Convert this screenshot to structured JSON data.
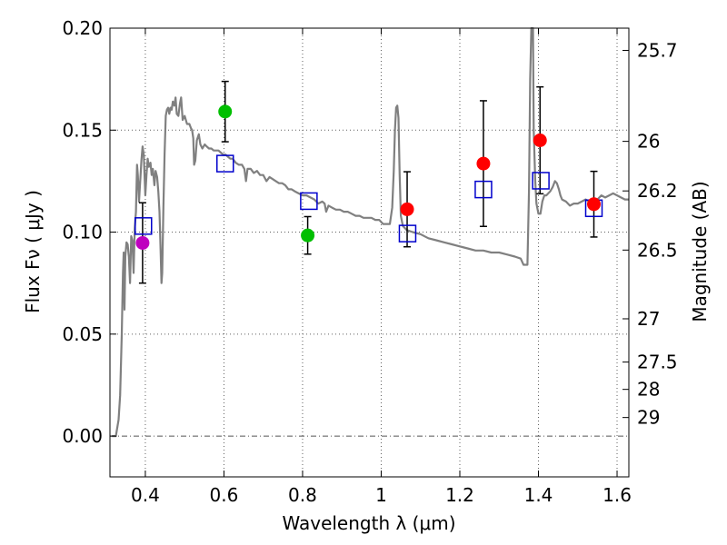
{
  "chart_data": {
    "type": "scatter",
    "xlabel": "Wavelength  λ (μm)",
    "ylabel_left": "Flux  Fν  ( μJy )",
    "ylabel_right": "Magnitude (AB)",
    "xlim": [
      0.31,
      1.63
    ],
    "ylim": [
      -0.02,
      0.2
    ],
    "grid": true,
    "zero_line": 0.0,
    "x_ticks": [
      {
        "value": 0.4,
        "label": "0.4"
      },
      {
        "value": 0.6,
        "label": "0.6"
      },
      {
        "value": 0.8,
        "label": "0.8"
      },
      {
        "value": 1.0,
        "label": "1"
      },
      {
        "value": 1.2,
        "label": "1.2"
      },
      {
        "value": 1.4,
        "label": "1.4"
      },
      {
        "value": 1.6,
        "label": "1.6"
      }
    ],
    "y_ticks": [
      {
        "value": 0.0,
        "label": "0.00"
      },
      {
        "value": 0.05,
        "label": "0.05"
      },
      {
        "value": 0.1,
        "label": "0.10"
      },
      {
        "value": 0.15,
        "label": "0.15"
      },
      {
        "value": 0.2,
        "label": "0.20"
      }
    ],
    "mag_ticks": [
      {
        "value": 0.1891,
        "label": "25.7"
      },
      {
        "value": 0.1445,
        "label": "26"
      },
      {
        "value": 0.1202,
        "label": "26.2"
      },
      {
        "value": 0.0912,
        "label": "26.5"
      },
      {
        "value": 0.0575,
        "label": "27"
      },
      {
        "value": 0.0363,
        "label": "27.5"
      },
      {
        "value": 0.0229,
        "label": "28"
      },
      {
        "value": 0.0091,
        "label": "29"
      }
    ],
    "model_sed": {
      "name": "model spectrum",
      "color": "#808080",
      "points": [
        [
          0.315,
          0.0
        ],
        [
          0.325,
          0.0
        ],
        [
          0.332,
          0.008
        ],
        [
          0.336,
          0.02
        ],
        [
          0.34,
          0.05
        ],
        [
          0.343,
          0.08
        ],
        [
          0.345,
          0.09
        ],
        [
          0.347,
          0.062
        ],
        [
          0.349,
          0.088
        ],
        [
          0.352,
          0.095
        ],
        [
          0.355,
          0.094
        ],
        [
          0.358,
          0.088
        ],
        [
          0.361,
          0.075
        ],
        [
          0.364,
          0.098
        ],
        [
          0.367,
          0.096
        ],
        [
          0.37,
          0.08
        ],
        [
          0.373,
          0.102
        ],
        [
          0.376,
          0.11
        ],
        [
          0.379,
          0.133
        ],
        [
          0.381,
          0.128
        ],
        [
          0.384,
          0.115
        ],
        [
          0.386,
          0.122
        ],
        [
          0.388,
          0.128
        ],
        [
          0.39,
          0.135
        ],
        [
          0.393,
          0.142
        ],
        [
          0.396,
          0.138
        ],
        [
          0.4,
          0.118
        ],
        [
          0.403,
          0.128
        ],
        [
          0.406,
          0.136
        ],
        [
          0.409,
          0.132
        ],
        [
          0.413,
          0.134
        ],
        [
          0.416,
          0.128
        ],
        [
          0.419,
          0.131
        ],
        [
          0.423,
          0.123
        ],
        [
          0.426,
          0.13
        ],
        [
          0.43,
          0.127
        ],
        [
          0.433,
          0.12
        ],
        [
          0.436,
          0.11
        ],
        [
          0.439,
          0.09
        ],
        [
          0.441,
          0.075
        ],
        [
          0.443,
          0.08
        ],
        [
          0.446,
          0.112
        ],
        [
          0.449,
          0.138
        ],
        [
          0.452,
          0.157
        ],
        [
          0.455,
          0.16
        ],
        [
          0.458,
          0.161
        ],
        [
          0.461,
          0.158
        ],
        [
          0.464,
          0.161
        ],
        [
          0.467,
          0.16
        ],
        [
          0.47,
          0.164
        ],
        [
          0.474,
          0.162
        ],
        [
          0.477,
          0.166
        ],
        [
          0.48,
          0.158
        ],
        [
          0.484,
          0.157
        ],
        [
          0.488,
          0.163
        ],
        [
          0.491,
          0.166
        ],
        [
          0.495,
          0.155
        ],
        [
          0.5,
          0.157
        ],
        [
          0.506,
          0.153
        ],
        [
          0.512,
          0.153
        ],
        [
          0.516,
          0.151
        ],
        [
          0.519,
          0.15
        ],
        [
          0.522,
          0.146
        ],
        [
          0.524,
          0.133
        ],
        [
          0.527,
          0.135
        ],
        [
          0.531,
          0.145
        ],
        [
          0.536,
          0.148
        ],
        [
          0.54,
          0.143
        ],
        [
          0.545,
          0.141
        ],
        [
          0.551,
          0.143
        ],
        [
          0.556,
          0.142
        ],
        [
          0.562,
          0.141
        ],
        [
          0.568,
          0.141
        ],
        [
          0.574,
          0.14
        ],
        [
          0.58,
          0.14
        ],
        [
          0.586,
          0.14
        ],
        [
          0.592,
          0.139
        ],
        [
          0.598,
          0.138
        ],
        [
          0.604,
          0.138
        ],
        [
          0.61,
          0.137
        ],
        [
          0.616,
          0.136
        ],
        [
          0.622,
          0.136
        ],
        [
          0.63,
          0.134
        ],
        [
          0.638,
          0.133
        ],
        [
          0.646,
          0.133
        ],
        [
          0.652,
          0.131
        ],
        [
          0.656,
          0.125
        ],
        [
          0.66,
          0.131
        ],
        [
          0.668,
          0.131
        ],
        [
          0.676,
          0.129
        ],
        [
          0.684,
          0.13
        ],
        [
          0.692,
          0.128
        ],
        [
          0.7,
          0.128
        ],
        [
          0.708,
          0.125
        ],
        [
          0.716,
          0.127
        ],
        [
          0.724,
          0.126
        ],
        [
          0.732,
          0.125
        ],
        [
          0.74,
          0.124
        ],
        [
          0.748,
          0.124
        ],
        [
          0.756,
          0.123
        ],
        [
          0.764,
          0.121
        ],
        [
          0.772,
          0.121
        ],
        [
          0.78,
          0.12
        ],
        [
          0.79,
          0.119
        ],
        [
          0.8,
          0.118
        ],
        [
          0.81,
          0.118
        ],
        [
          0.82,
          0.117
        ],
        [
          0.83,
          0.116
        ],
        [
          0.84,
          0.114
        ],
        [
          0.85,
          0.115
        ],
        [
          0.856,
          0.114
        ],
        [
          0.86,
          0.11
        ],
        [
          0.866,
          0.113
        ],
        [
          0.875,
          0.112
        ],
        [
          0.885,
          0.111
        ],
        [
          0.895,
          0.111
        ],
        [
          0.905,
          0.11
        ],
        [
          0.915,
          0.11
        ],
        [
          0.925,
          0.109
        ],
        [
          0.935,
          0.108
        ],
        [
          0.945,
          0.108
        ],
        [
          0.955,
          0.107
        ],
        [
          0.965,
          0.107
        ],
        [
          0.975,
          0.107
        ],
        [
          0.985,
          0.106
        ],
        [
          0.995,
          0.106
        ],
        [
          1.005,
          0.104
        ],
        [
          1.015,
          0.104
        ],
        [
          1.022,
          0.104
        ],
        [
          1.028,
          0.112
        ],
        [
          1.032,
          0.13
        ],
        [
          1.035,
          0.15
        ],
        [
          1.038,
          0.161
        ],
        [
          1.041,
          0.162
        ],
        [
          1.044,
          0.156
        ],
        [
          1.047,
          0.128
        ],
        [
          1.05,
          0.108
        ],
        [
          1.055,
          0.103
        ],
        [
          1.065,
          0.101
        ],
        [
          1.08,
          0.1
        ],
        [
          1.1,
          0.099
        ],
        [
          1.12,
          0.097
        ],
        [
          1.14,
          0.096
        ],
        [
          1.16,
          0.095
        ],
        [
          1.18,
          0.094
        ],
        [
          1.2,
          0.093
        ],
        [
          1.22,
          0.092
        ],
        [
          1.24,
          0.091
        ],
        [
          1.26,
          0.091
        ],
        [
          1.28,
          0.09
        ],
        [
          1.3,
          0.09
        ],
        [
          1.32,
          0.089
        ],
        [
          1.34,
          0.088
        ],
        [
          1.355,
          0.087
        ],
        [
          1.362,
          0.084
        ],
        [
          1.372,
          0.084
        ],
        [
          1.376,
          0.12
        ],
        [
          1.379,
          0.175
        ],
        [
          1.382,
          0.2
        ],
        [
          1.386,
          0.2
        ],
        [
          1.388,
          0.15
        ],
        [
          1.392,
          0.125
        ],
        [
          1.395,
          0.114
        ],
        [
          1.4,
          0.109
        ],
        [
          1.405,
          0.109
        ],
        [
          1.41,
          0.115
        ],
        [
          1.415,
          0.118
        ],
        [
          1.42,
          0.118
        ],
        [
          1.425,
          0.119
        ],
        [
          1.43,
          0.12
        ],
        [
          1.436,
          0.122
        ],
        [
          1.442,
          0.125
        ],
        [
          1.447,
          0.124
        ],
        [
          1.452,
          0.121
        ],
        [
          1.456,
          0.118
        ],
        [
          1.46,
          0.116
        ],
        [
          1.47,
          0.115
        ],
        [
          1.48,
          0.113
        ],
        [
          1.49,
          0.114
        ],
        [
          1.5,
          0.114
        ],
        [
          1.51,
          0.115
        ],
        [
          1.52,
          0.116
        ],
        [
          1.53,
          0.115
        ],
        [
          1.54,
          0.116
        ],
        [
          1.55,
          0.116
        ],
        [
          1.56,
          0.118
        ],
        [
          1.57,
          0.117
        ],
        [
          1.58,
          0.118
        ],
        [
          1.59,
          0.119
        ],
        [
          1.6,
          0.118
        ],
        [
          1.61,
          0.117
        ],
        [
          1.62,
          0.116
        ],
        [
          1.63,
          0.116
        ]
      ]
    },
    "observed": [
      {
        "x": 0.393,
        "y": 0.0947,
        "err": 0.0197,
        "color": "#bf00bf"
      },
      {
        "x": 0.603,
        "y": 0.1591,
        "err": 0.0148,
        "color": "#00bf00"
      },
      {
        "x": 0.813,
        "y": 0.0984,
        "err": 0.0092,
        "color": "#00bf00"
      },
      {
        "x": 1.066,
        "y": 0.1112,
        "err": 0.0184,
        "color": "#ff0000"
      },
      {
        "x": 1.26,
        "y": 0.1336,
        "err": 0.0308,
        "color": "#ff0000"
      },
      {
        "x": 1.404,
        "y": 0.145,
        "err": 0.0262,
        "color": "#ff0000"
      },
      {
        "x": 1.541,
        "y": 0.1137,
        "err": 0.0161,
        "color": "#ff0000"
      }
    ],
    "model_photometry": [
      {
        "x": 0.395,
        "y": 0.103
      },
      {
        "x": 0.603,
        "y": 0.1336
      },
      {
        "x": 0.816,
        "y": 0.1152
      },
      {
        "x": 1.067,
        "y": 0.0993
      },
      {
        "x": 1.26,
        "y": 0.1209
      },
      {
        "x": 1.406,
        "y": 0.1252
      },
      {
        "x": 1.541,
        "y": 0.1117
      }
    ],
    "model_photometry_color": "#0000cc",
    "grid_color": "#606060"
  }
}
